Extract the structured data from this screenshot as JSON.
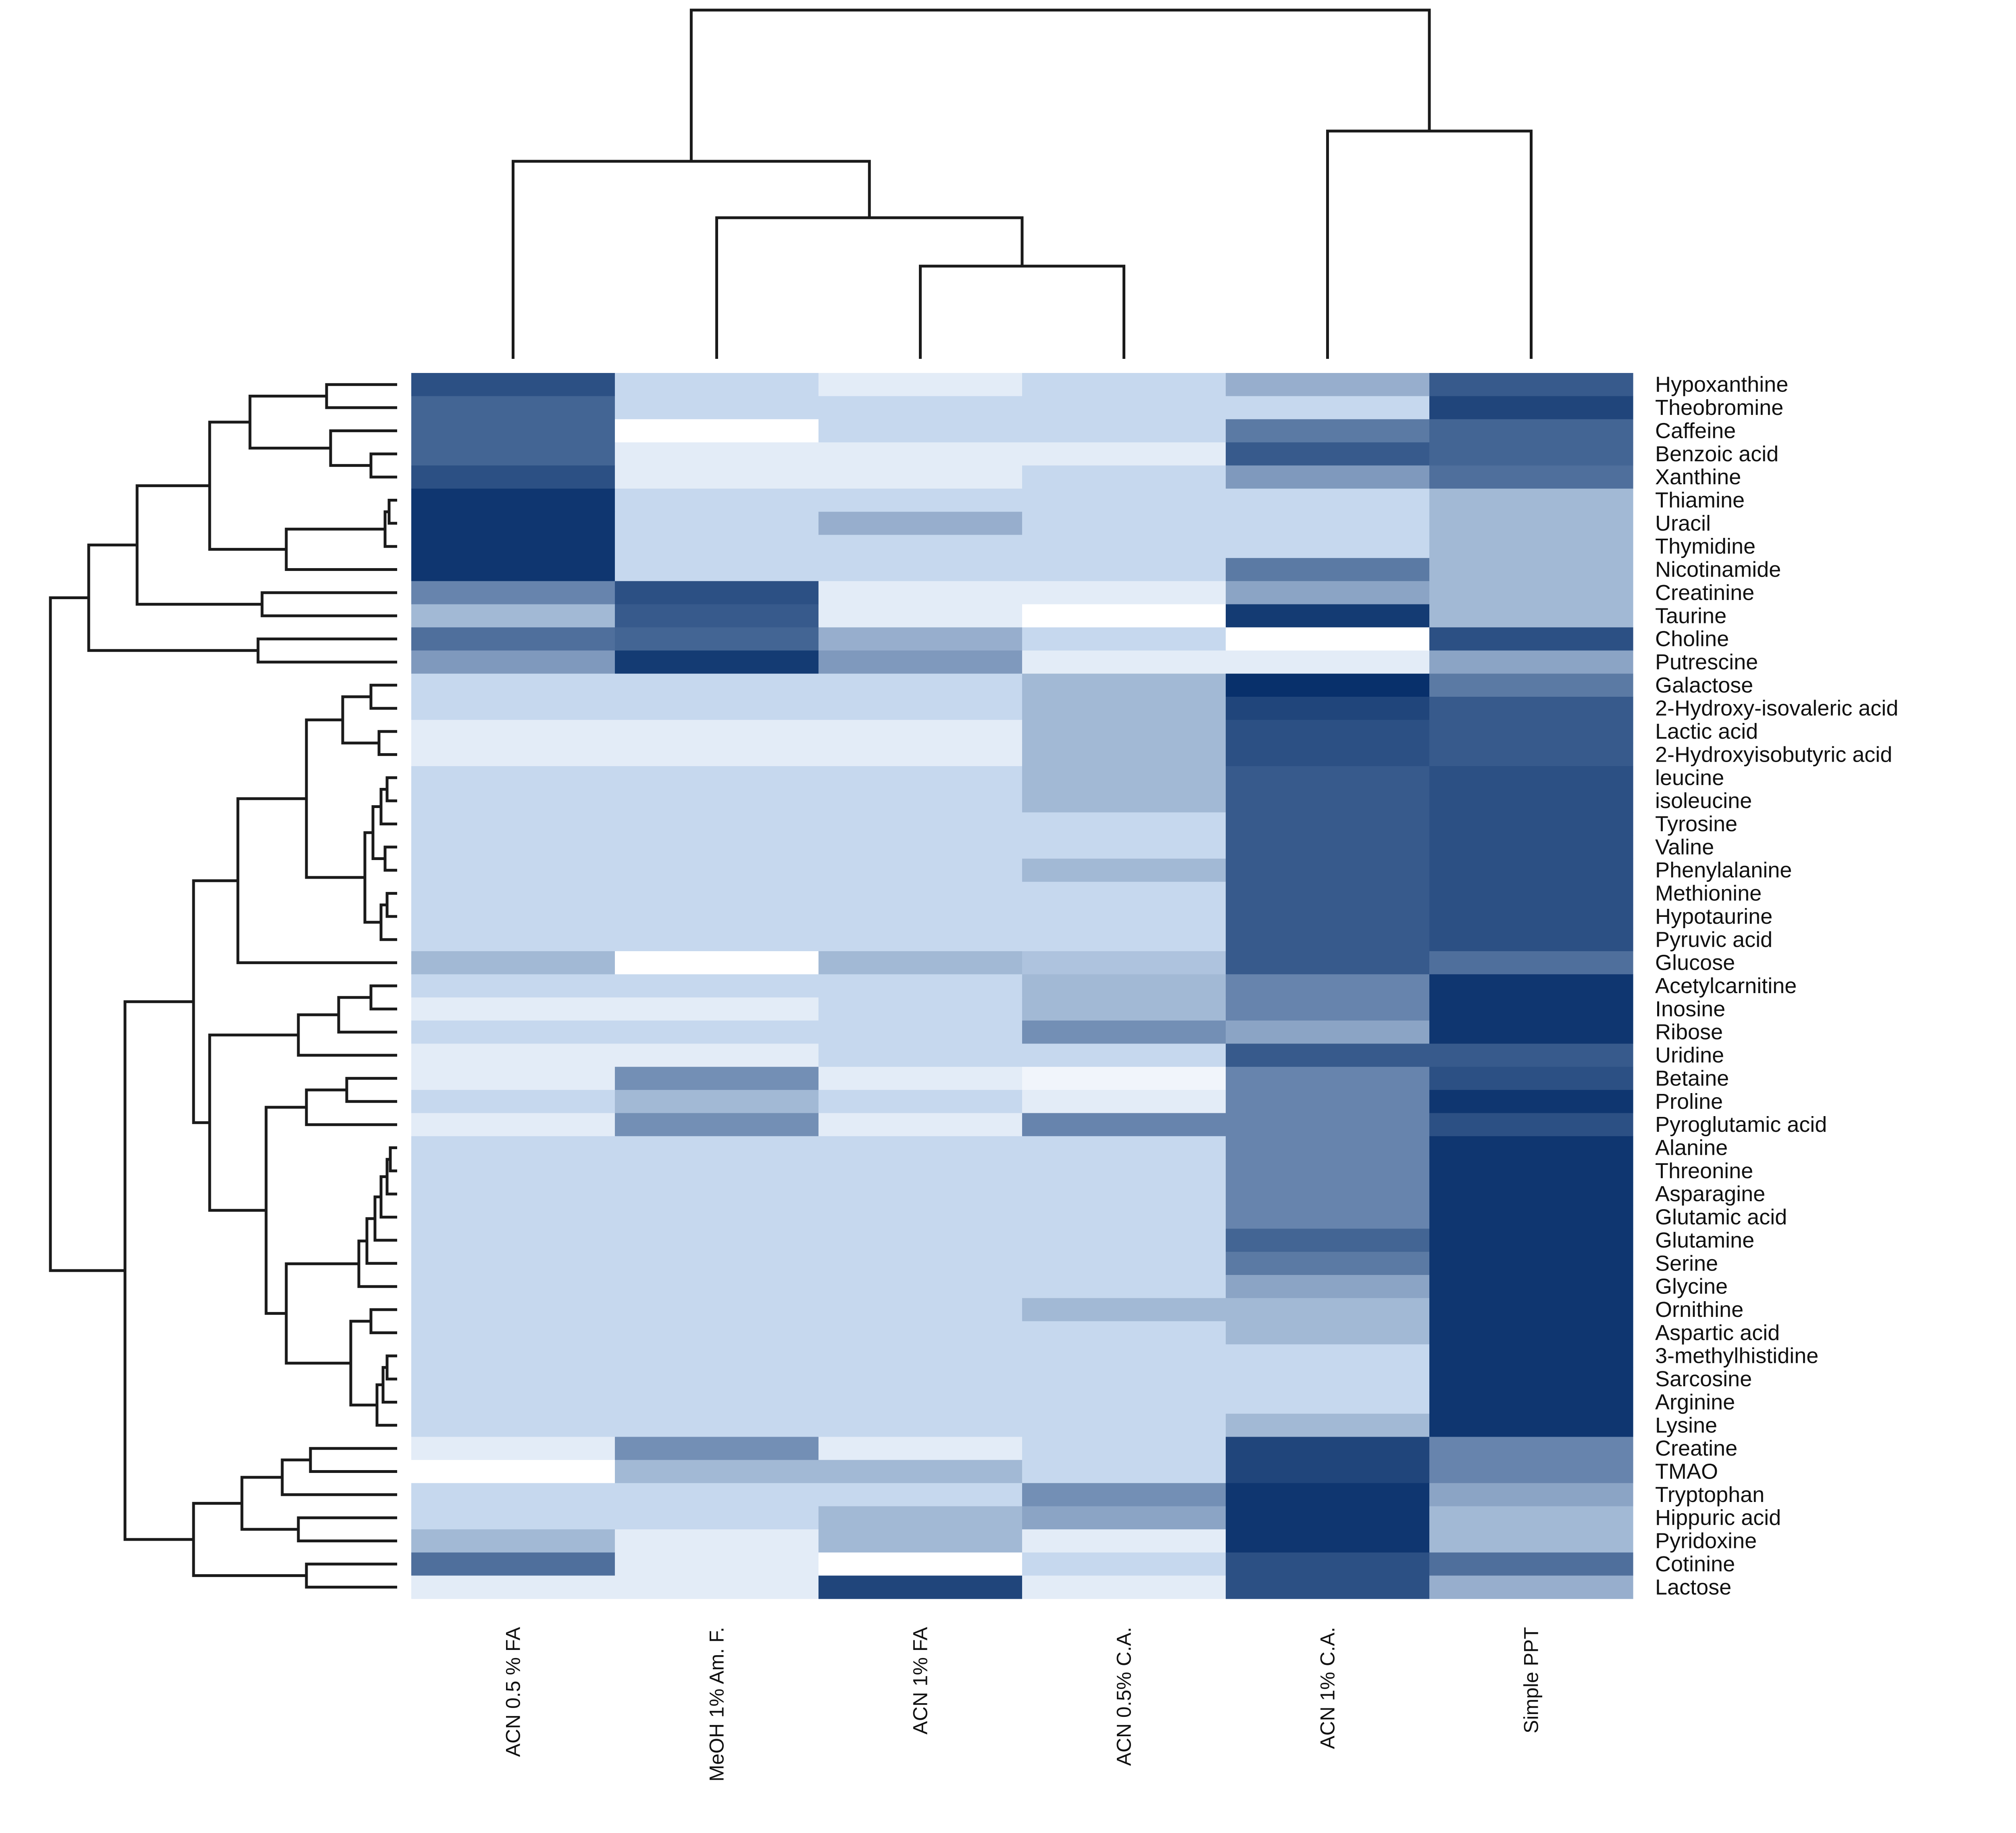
{
  "chart_data": {
    "type": "heatmap",
    "title": "",
    "xlabel": "",
    "ylabel": "",
    "columns": [
      "ACN 0.5 % FA",
      "MeOH 1% Am. F.",
      "ACN 1% FA",
      "ACN 0.5% C.A.",
      "ACN 1% C.A.",
      "Simple PPT"
    ],
    "rows": [
      "Hypoxanthine",
      "Theobromine",
      "Caffeine",
      "Benzoic acid",
      "Xanthine",
      "Thiamine",
      "Uracil",
      "Thymidine",
      "Nicotinamide",
      "Creatinine",
      "Taurine",
      "Choline",
      "Putrescine",
      "Galactose",
      "2-Hydroxy-isovaleric acid",
      "Lactic acid",
      "2-Hydroxyisobutyric acid",
      "leucine",
      "isoleucine",
      "Tyrosine",
      "Valine",
      "Phenylalanine",
      "Methionine",
      "Hypotaurine",
      "Pyruvic acid",
      "Glucose",
      "Acetylcarnitine",
      "Inosine",
      "Ribose",
      "Uridine",
      "Betaine",
      "Proline",
      "Pyroglutamic acid",
      "Alanine",
      "Threonine",
      "Asparagine",
      "Glutamic acid",
      "Glutamine",
      "Serine",
      "Glycine",
      "Ornithine",
      "Aspartic acid",
      "3-methylhistidine",
      "Sarcosine",
      "Arginine",
      "Lysine",
      "Creatine",
      "TMAO",
      "Tryptophan",
      "Hippuric acid",
      "Pyridoxine",
      "Cotinine",
      "Lactose"
    ],
    "values": [
      [
        0.85,
        0.2,
        0.1,
        0.2,
        0.4,
        0.8
      ],
      [
        0.75,
        0.2,
        0.2,
        0.2,
        0.2,
        0.9
      ],
      [
        0.75,
        0.0,
        0.2,
        0.2,
        0.65,
        0.75
      ],
      [
        0.75,
        0.1,
        0.1,
        0.1,
        0.8,
        0.75
      ],
      [
        0.85,
        0.1,
        0.1,
        0.2,
        0.5,
        0.7
      ],
      [
        0.97,
        0.2,
        0.2,
        0.2,
        0.2,
        0.35
      ],
      [
        0.97,
        0.2,
        0.4,
        0.2,
        0.2,
        0.35
      ],
      [
        0.97,
        0.2,
        0.2,
        0.2,
        0.2,
        0.35
      ],
      [
        0.97,
        0.2,
        0.2,
        0.2,
        0.65,
        0.35
      ],
      [
        0.6,
        0.85,
        0.1,
        0.1,
        0.45,
        0.35
      ],
      [
        0.35,
        0.8,
        0.1,
        0.0,
        0.95,
        0.35
      ],
      [
        0.7,
        0.75,
        0.4,
        0.2,
        0.0,
        0.85
      ],
      [
        0.5,
        0.95,
        0.5,
        0.1,
        0.1,
        0.45
      ],
      [
        0.2,
        0.2,
        0.2,
        0.35,
        1.0,
        0.65
      ],
      [
        0.2,
        0.2,
        0.2,
        0.35,
        0.9,
        0.8
      ],
      [
        0.1,
        0.1,
        0.1,
        0.35,
        0.85,
        0.8
      ],
      [
        0.1,
        0.1,
        0.1,
        0.35,
        0.85,
        0.8
      ],
      [
        0.2,
        0.2,
        0.2,
        0.35,
        0.8,
        0.85
      ],
      [
        0.2,
        0.2,
        0.2,
        0.35,
        0.8,
        0.85
      ],
      [
        0.2,
        0.2,
        0.2,
        0.2,
        0.8,
        0.85
      ],
      [
        0.2,
        0.2,
        0.2,
        0.2,
        0.8,
        0.85
      ],
      [
        0.2,
        0.2,
        0.2,
        0.35,
        0.8,
        0.85
      ],
      [
        0.2,
        0.2,
        0.2,
        0.2,
        0.8,
        0.85
      ],
      [
        0.2,
        0.2,
        0.2,
        0.2,
        0.8,
        0.85
      ],
      [
        0.2,
        0.2,
        0.2,
        0.2,
        0.8,
        0.85
      ],
      [
        0.35,
        0.0,
        0.35,
        0.3,
        0.8,
        0.7
      ],
      [
        0.2,
        0.2,
        0.2,
        0.35,
        0.6,
        0.97
      ],
      [
        0.1,
        0.1,
        0.2,
        0.35,
        0.6,
        0.97
      ],
      [
        0.2,
        0.2,
        0.2,
        0.55,
        0.45,
        0.97
      ],
      [
        0.1,
        0.1,
        0.2,
        0.2,
        0.8,
        0.8
      ],
      [
        0.1,
        0.55,
        0.1,
        0.05,
        0.6,
        0.85
      ],
      [
        0.2,
        0.35,
        0.2,
        0.1,
        0.6,
        0.97
      ],
      [
        0.1,
        0.55,
        0.1,
        0.6,
        0.6,
        0.85
      ],
      [
        0.2,
        0.2,
        0.2,
        0.2,
        0.6,
        0.97
      ],
      [
        0.2,
        0.2,
        0.2,
        0.2,
        0.6,
        0.97
      ],
      [
        0.2,
        0.2,
        0.2,
        0.2,
        0.6,
        0.97
      ],
      [
        0.2,
        0.2,
        0.2,
        0.2,
        0.6,
        0.97
      ],
      [
        0.2,
        0.2,
        0.2,
        0.2,
        0.75,
        0.97
      ],
      [
        0.2,
        0.2,
        0.2,
        0.2,
        0.65,
        0.97
      ],
      [
        0.2,
        0.2,
        0.2,
        0.2,
        0.45,
        0.97
      ],
      [
        0.2,
        0.2,
        0.2,
        0.35,
        0.35,
        0.97
      ],
      [
        0.2,
        0.2,
        0.2,
        0.2,
        0.35,
        0.97
      ],
      [
        0.2,
        0.2,
        0.2,
        0.2,
        0.2,
        0.97
      ],
      [
        0.2,
        0.2,
        0.2,
        0.2,
        0.2,
        0.97
      ],
      [
        0.2,
        0.2,
        0.2,
        0.2,
        0.2,
        0.97
      ],
      [
        0.2,
        0.2,
        0.2,
        0.2,
        0.35,
        0.97
      ],
      [
        0.1,
        0.55,
        0.1,
        0.2,
        0.9,
        0.6
      ],
      [
        0.0,
        0.35,
        0.35,
        0.2,
        0.9,
        0.6
      ],
      [
        0.2,
        0.2,
        0.2,
        0.55,
        0.97,
        0.45
      ],
      [
        0.2,
        0.2,
        0.35,
        0.45,
        0.97,
        0.35
      ],
      [
        0.35,
        0.1,
        0.35,
        0.1,
        0.97,
        0.35
      ],
      [
        0.7,
        0.1,
        0.0,
        0.2,
        0.85,
        0.7
      ],
      [
        0.1,
        0.1,
        0.9,
        0.1,
        0.85,
        0.4
      ]
    ],
    "color_scale": {
      "low": "#ffffff",
      "mid": "#c6d8ee",
      "high": "#08306b"
    },
    "row_dendrogram": true,
    "column_dendrogram": true,
    "legend": "none"
  }
}
